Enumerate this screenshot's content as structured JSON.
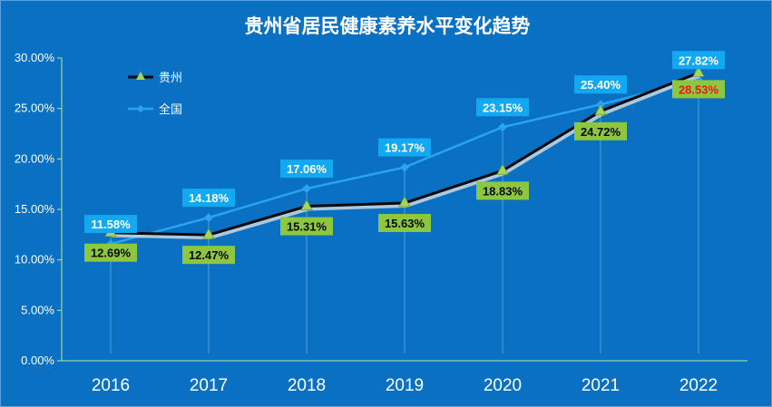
{
  "chart_data": {
    "type": "line",
    "title": "贵州省居民健康素养水平变化趋势",
    "categories": [
      "2016",
      "2017",
      "2018",
      "2019",
      "2020",
      "2021",
      "2022"
    ],
    "ylim": [
      0,
      30
    ],
    "yticks": [
      "0.00%",
      "5.00%",
      "10.00%",
      "15.00%",
      "20.00%",
      "25.00%",
      "30.00%"
    ],
    "series": [
      {
        "name": "贵州",
        "values": [
          12.69,
          12.47,
          15.31,
          15.63,
          18.83,
          24.72,
          28.53
        ],
        "labels": [
          "12.69%",
          "12.47%",
          "15.31%",
          "15.63%",
          "18.83%",
          "24.72%",
          "28.53%"
        ],
        "color": "#0a0a0a",
        "marker_color": "#a4d65e",
        "label_bg": "#8dc63f"
      },
      {
        "name": "全国",
        "values": [
          11.58,
          14.18,
          17.06,
          19.17,
          23.15,
          25.4,
          27.82
        ],
        "labels": [
          "11.58%",
          "14.18%",
          "17.06%",
          "19.17%",
          "23.15%",
          "25.40%",
          "27.82%"
        ],
        "color": "#2aa3f0",
        "marker_color": "#2aa3f0",
        "label_bg": "#12a9f2"
      }
    ],
    "highlight_color": "#e81b1b",
    "legend_position": "top-left"
  }
}
